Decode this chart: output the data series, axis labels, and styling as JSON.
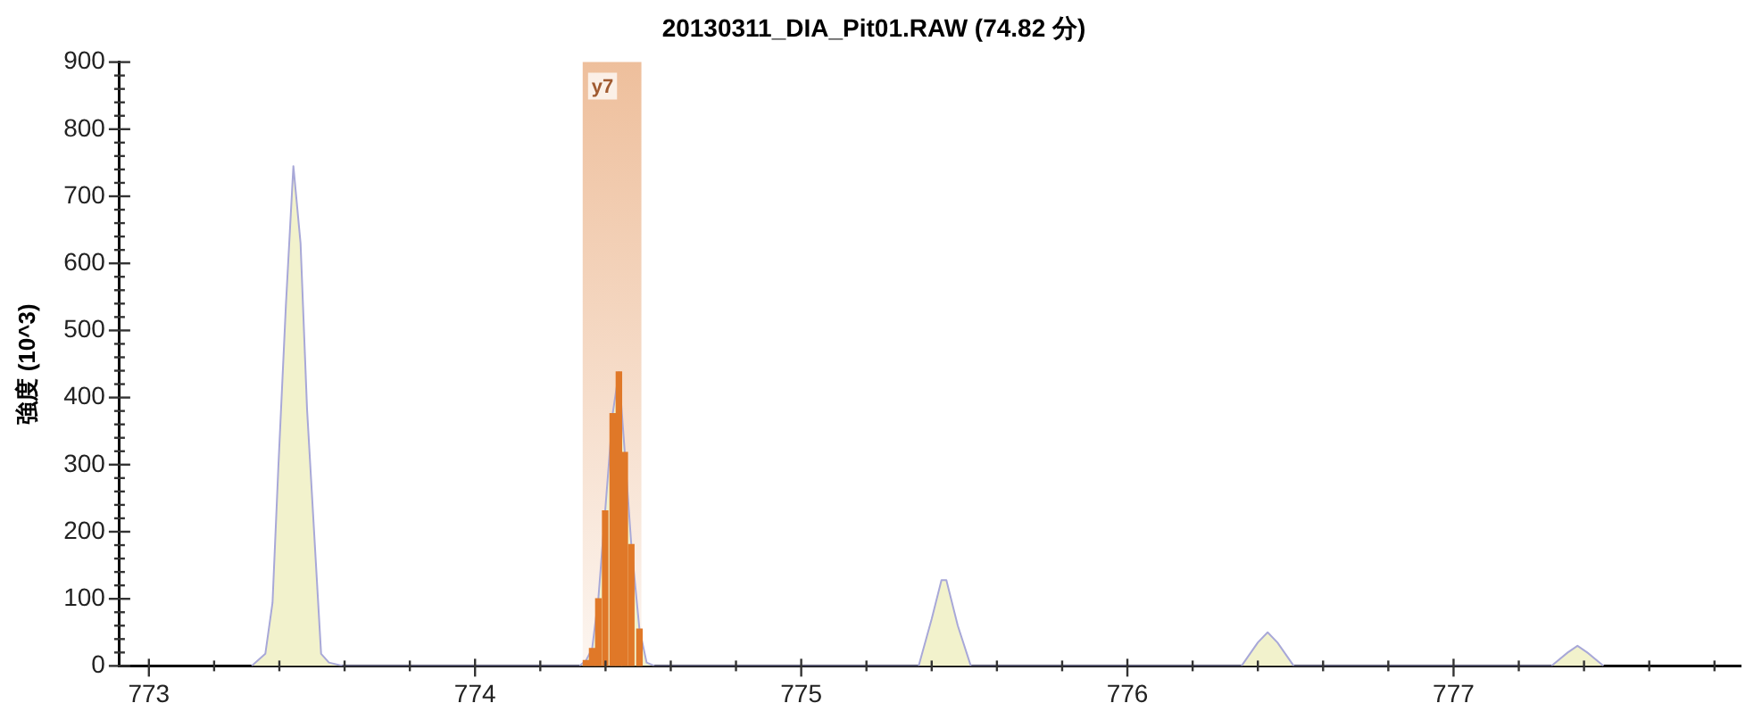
{
  "chart_data": {
    "type": "area",
    "title": "20130311_DIA_Pit01.RAW (74.82 分)",
    "ylabel": "強度 (10^3)",
    "xlim": [
      772.91,
      777.88
    ],
    "ylim": [
      0,
      900
    ],
    "xticks": [
      773,
      {
        "value": 773.2,
        "label": null
      },
      {
        "value": 773.4,
        "label": null
      },
      {
        "value": 773.6,
        "label": null
      },
      {
        "value": 773.8,
        "label": null
      },
      774,
      {
        "value": 774.2,
        "label": null
      },
      {
        "value": 774.4,
        "label": null
      },
      {
        "value": 774.6,
        "label": null
      },
      {
        "value": 774.8,
        "label": null
      },
      775,
      {
        "value": 775.2,
        "label": null
      },
      {
        "value": 775.4,
        "label": null
      },
      {
        "value": 775.6,
        "label": null
      },
      {
        "value": 775.8,
        "label": null
      },
      776,
      {
        "value": 776.2,
        "label": null
      },
      {
        "value": 776.4,
        "label": null
      },
      {
        "value": 776.6,
        "label": null
      },
      {
        "value": 776.8,
        "label": null
      },
      777,
      {
        "value": 777.2,
        "label": null
      },
      {
        "value": 777.4,
        "label": null
      },
      {
        "value": 777.6,
        "label": null
      },
      {
        "value": 777.8,
        "label": null
      }
    ],
    "yticks": [
      0,
      {
        "value": 20,
        "label": null
      },
      {
        "value": 40,
        "label": null
      },
      {
        "value": 60,
        "label": null
      },
      {
        "value": 80,
        "label": null
      },
      100,
      {
        "value": 120,
        "label": null
      },
      {
        "value": 140,
        "label": null
      },
      {
        "value": 160,
        "label": null
      },
      {
        "value": 180,
        "label": null
      },
      200,
      {
        "value": 220,
        "label": null
      },
      {
        "value": 240,
        "label": null
      },
      {
        "value": 260,
        "label": null
      },
      {
        "value": 280,
        "label": null
      },
      300,
      {
        "value": 320,
        "label": null
      },
      {
        "value": 340,
        "label": null
      },
      {
        "value": 360,
        "label": null
      },
      {
        "value": 380,
        "label": null
      },
      400,
      {
        "value": 420,
        "label": null
      },
      {
        "value": 440,
        "label": null
      },
      {
        "value": 460,
        "label": null
      },
      {
        "value": 480,
        "label": null
      },
      500,
      {
        "value": 520,
        "label": null
      },
      {
        "value": 540,
        "label": null
      },
      {
        "value": 560,
        "label": null
      },
      {
        "value": 580,
        "label": null
      },
      600,
      {
        "value": 620,
        "label": null
      },
      {
        "value": 640,
        "label": null
      },
      {
        "value": 660,
        "label": null
      },
      {
        "value": 680,
        "label": null
      },
      700,
      {
        "value": 720,
        "label": null
      },
      {
        "value": 740,
        "label": null
      },
      {
        "value": 760,
        "label": null
      },
      {
        "value": 780,
        "label": null
      },
      800,
      {
        "value": 820,
        "label": null
      },
      {
        "value": 840,
        "label": null
      },
      {
        "value": 860,
        "label": null
      },
      {
        "value": 880,
        "label": null
      },
      900
    ],
    "series": [
      {
        "color": "#a8a8d8",
        "x": [
          773.315,
          773.357,
          773.379,
          773.397,
          773.42,
          773.443,
          773.465,
          773.485,
          773.528,
          773.552,
          773.595,
          774.32,
          774.34,
          774.359,
          774.378,
          774.399,
          774.422,
          774.441,
          774.459,
          774.479,
          774.504,
          774.526,
          774.55,
          775.36,
          775.4,
          775.43,
          775.445,
          775.48,
          775.52,
          776.35,
          776.4,
          776.43,
          776.46,
          776.51,
          777.3,
          777.35,
          777.38,
          777.41,
          777.46
        ],
        "values": [
          0,
          18,
          94,
          297,
          537,
          745,
          630,
          382,
          18,
          5,
          0,
          0,
          8,
          26,
          100,
          231,
          376,
          438,
          318,
          181,
          55,
          5,
          0,
          0,
          70,
          128,
          128,
          60,
          0,
          0,
          35,
          50,
          35,
          0,
          0,
          20,
          30,
          20,
          0
        ]
      },
      {
        "type": "bar",
        "color": "#e07828",
        "x": [
          774.34,
          774.359,
          774.378,
          774.399,
          774.422,
          774.441,
          774.459,
          774.479,
          774.504
        ],
        "values": [
          8,
          26,
          100,
          231,
          376,
          438,
          318,
          181,
          55
        ]
      }
    ],
    "bands": [
      {
        "axis": "x",
        "from": 774.33,
        "to": 774.51,
        "label": "y7",
        "color": "#eebf9c"
      }
    ],
    "grid": false,
    "legend": false
  }
}
